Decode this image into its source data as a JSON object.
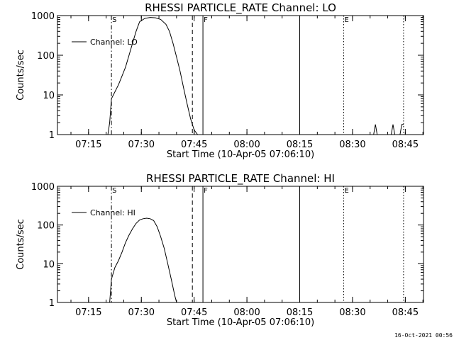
{
  "chart_data": [
    {
      "type": "line",
      "title": "RHESSI PARTICLE_RATE Channel: LO",
      "xlabel": "Start Time (10-Apr-05 07:06:10)",
      "ylabel": "Counts/sec",
      "yscale": "log",
      "ylim": [
        1,
        1000
      ],
      "yticks": [
        1,
        10,
        100,
        1000
      ],
      "ytick_labels": [
        "1",
        "10",
        "100",
        "1000"
      ],
      "xlim_minutes": [
        0,
        104
      ],
      "xticks": [
        "07:15",
        "07:30",
        "07:45",
        "08:00",
        "08:15",
        "08:30",
        "08:45"
      ],
      "legend": {
        "entries": [
          "Channel: LO"
        ],
        "position": "top-left"
      },
      "markers": [
        {
          "label": "S",
          "time": "07:21:30",
          "style": "dashdot"
        },
        {
          "label": "",
          "time": "07:44:30",
          "style": "dashed"
        },
        {
          "label": "F",
          "time": "07:47:30",
          "style": "solid"
        },
        {
          "label": "",
          "time": "08:15:00",
          "style": "solid"
        },
        {
          "label": "E",
          "time": "08:27:30",
          "style": "dotted"
        },
        {
          "label": "",
          "time": "08:44:30",
          "style": "dotted"
        }
      ],
      "series": [
        {
          "name": "Channel: LO",
          "points": [
            [
              "07:20:30",
              1
            ],
            [
              "07:21:00",
              2
            ],
            [
              "07:21:30",
              8
            ],
            [
              "07:22:30",
              12
            ],
            [
              "07:23:30",
              18
            ],
            [
              "07:24:30",
              30
            ],
            [
              "07:25:30",
              50
            ],
            [
              "07:26:30",
              100
            ],
            [
              "07:27:30",
              200
            ],
            [
              "07:28:30",
              400
            ],
            [
              "07:29:30",
              700
            ],
            [
              "07:31:00",
              850
            ],
            [
              "07:32:30",
              900
            ],
            [
              "07:34:00",
              880
            ],
            [
              "07:35:30",
              800
            ],
            [
              "07:37:00",
              600
            ],
            [
              "07:38:00",
              400
            ],
            [
              "07:39:00",
              200
            ],
            [
              "07:40:00",
              90
            ],
            [
              "07:41:00",
              40
            ],
            [
              "07:42:00",
              15
            ],
            [
              "07:43:00",
              6
            ],
            [
              "07:44:00",
              2.5
            ],
            [
              "07:45:00",
              1.3
            ],
            [
              "07:46:00",
              1
            ]
          ]
        },
        {
          "name": "",
          "points": [
            [
              "08:36:00",
              1
            ],
            [
              "08:36:30",
              1.8
            ],
            [
              "08:37:00",
              1
            ]
          ]
        },
        {
          "name": "",
          "points": [
            [
              "08:41:00",
              1
            ],
            [
              "08:41:30",
              1.8
            ],
            [
              "08:42:00",
              1
            ]
          ]
        },
        {
          "name": "",
          "points": [
            [
              "08:43:30",
              1
            ],
            [
              "08:44:00",
              1.8
            ],
            [
              "08:44:30",
              1.8
            ]
          ]
        }
      ]
    },
    {
      "type": "line",
      "title": "RHESSI PARTICLE_RATE Channel: HI",
      "xlabel": "Start Time (10-Apr-05 07:06:10)",
      "ylabel": "Counts/sec",
      "yscale": "log",
      "ylim": [
        1,
        1000
      ],
      "yticks": [
        1,
        10,
        100,
        1000
      ],
      "ytick_labels": [
        "1",
        "10",
        "100",
        "1000"
      ],
      "xlim_minutes": [
        0,
        104
      ],
      "xticks": [
        "07:15",
        "07:30",
        "07:45",
        "08:00",
        "08:15",
        "08:30",
        "08:45"
      ],
      "legend": {
        "entries": [
          "Channel: HI"
        ],
        "position": "top-left"
      },
      "markers": [
        {
          "label": "S",
          "time": "07:21:30",
          "style": "dashdot"
        },
        {
          "label": "",
          "time": "07:44:30",
          "style": "dashed"
        },
        {
          "label": "F",
          "time": "07:47:30",
          "style": "solid"
        },
        {
          "label": "",
          "time": "08:15:00",
          "style": "solid"
        },
        {
          "label": "E",
          "time": "08:27:30",
          "style": "dotted"
        },
        {
          "label": "",
          "time": "08:44:30",
          "style": "dotted"
        }
      ],
      "series": [
        {
          "name": "Channel: HI",
          "points": [
            [
              "07:21:00",
              1
            ],
            [
              "07:21:30",
              4
            ],
            [
              "07:22:30",
              8
            ],
            [
              "07:23:30",
              12
            ],
            [
              "07:24:30",
              20
            ],
            [
              "07:25:30",
              35
            ],
            [
              "07:26:30",
              55
            ],
            [
              "07:27:30",
              80
            ],
            [
              "07:28:30",
              110
            ],
            [
              "07:29:30",
              135
            ],
            [
              "07:30:30",
              145
            ],
            [
              "07:31:30",
              150
            ],
            [
              "07:32:30",
              145
            ],
            [
              "07:33:30",
              130
            ],
            [
              "07:34:30",
              90
            ],
            [
              "07:35:30",
              50
            ],
            [
              "07:36:30",
              25
            ],
            [
              "07:37:30",
              10
            ],
            [
              "07:38:30",
              4
            ],
            [
              "07:39:30",
              1.5
            ],
            [
              "07:40:00",
              1
            ]
          ]
        }
      ]
    }
  ],
  "footer": {
    "timestamp": "16-Oct-2021 00:56"
  }
}
